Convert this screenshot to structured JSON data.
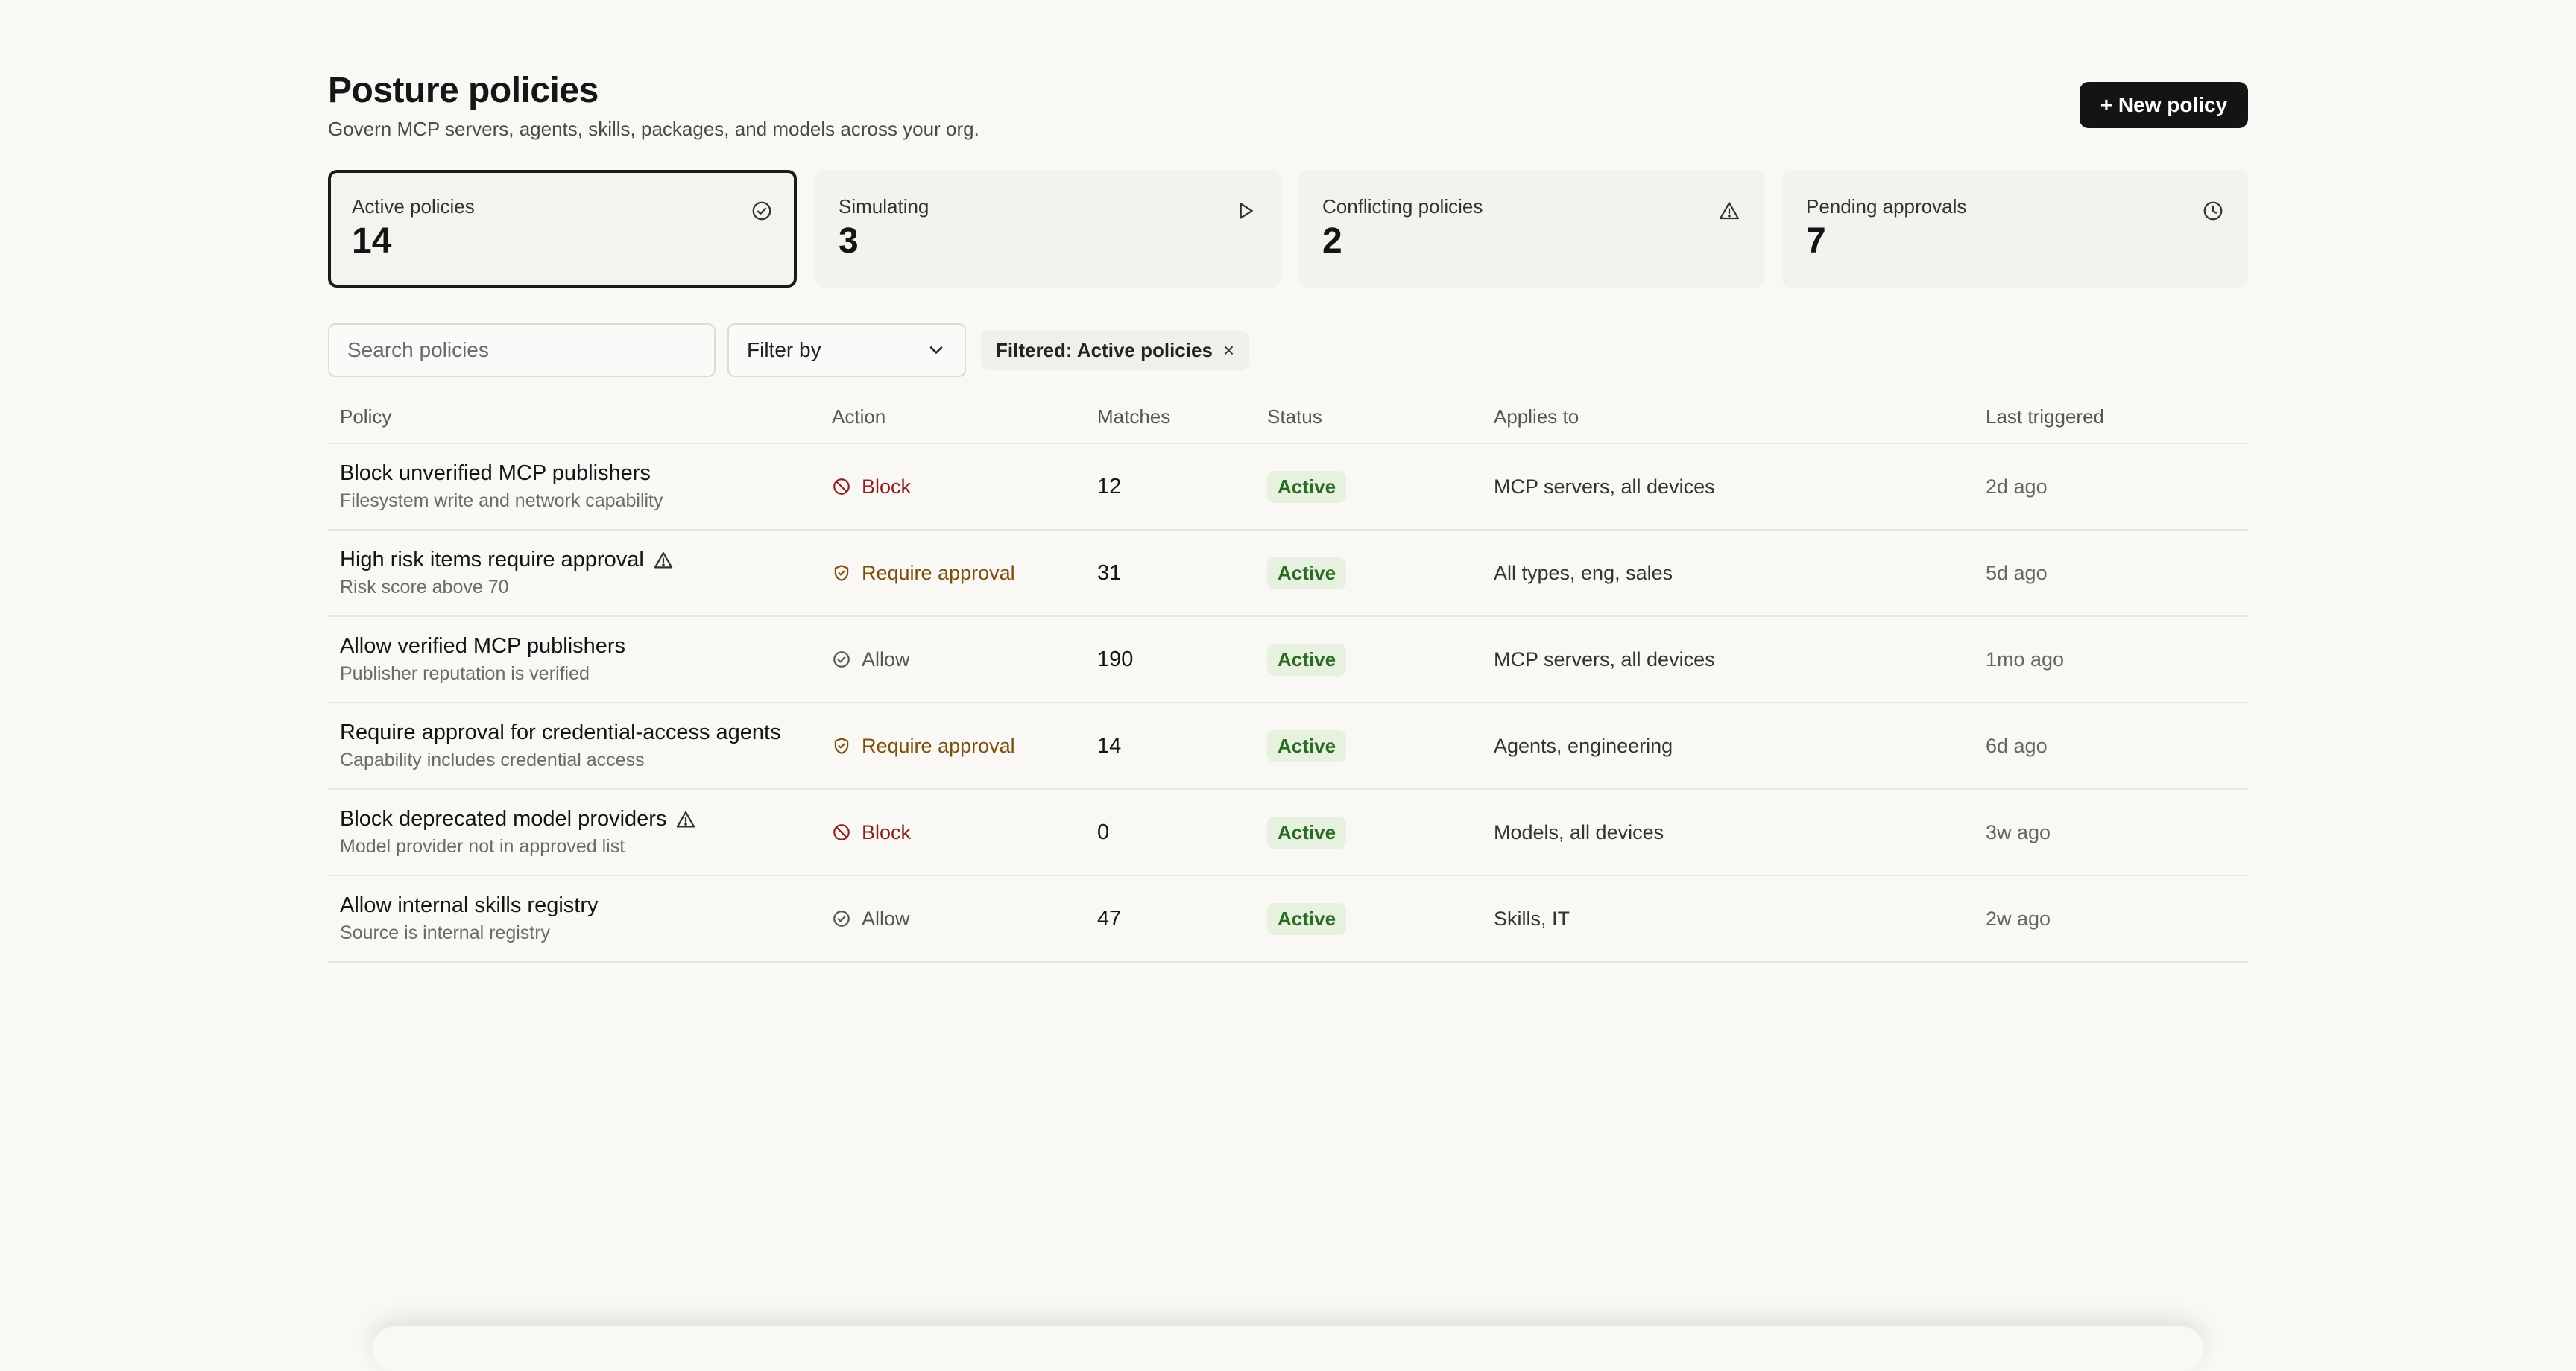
{
  "header": {
    "title": "Posture policies",
    "subtitle": "Govern MCP servers, agents, skills, packages, and models across your org.",
    "new_policy_label": "+ New policy"
  },
  "stats": [
    {
      "label": "Active policies",
      "value": "14",
      "icon": "check-circle-icon",
      "selected": true
    },
    {
      "label": "Simulating",
      "value": "3",
      "icon": "play-icon",
      "selected": false
    },
    {
      "label": "Conflicting policies",
      "value": "2",
      "icon": "warning-triangle-icon",
      "selected": false
    },
    {
      "label": "Pending approvals",
      "value": "7",
      "icon": "clock-icon",
      "selected": false
    }
  ],
  "filters": {
    "search_placeholder": "Search policies",
    "filter_by_label": "Filter by",
    "chip_label": "Filtered: Active policies",
    "chip_close": "×"
  },
  "table": {
    "columns": [
      "Policy",
      "Action",
      "Matches",
      "Status",
      "Applies to",
      "Last triggered"
    ],
    "rows": [
      {
        "name": "Block unverified MCP publishers",
        "desc": "Filesystem write and network capability",
        "warning": false,
        "action": "Block",
        "action_type": "block",
        "matches": "12",
        "status": "Active",
        "applies": "MCP servers, all devices",
        "last": "2d ago"
      },
      {
        "name": "High risk items require approval",
        "desc": "Risk score above 70",
        "warning": true,
        "action": "Require approval",
        "action_type": "approval",
        "matches": "31",
        "status": "Active",
        "applies": "All types, eng, sales",
        "last": "5d ago"
      },
      {
        "name": "Allow verified MCP publishers",
        "desc": "Publisher reputation is verified",
        "warning": false,
        "action": "Allow",
        "action_type": "allow",
        "matches": "190",
        "status": "Active",
        "applies": "MCP servers, all devices",
        "last": "1mo ago"
      },
      {
        "name": "Require approval for credential-access agents",
        "desc": "Capability includes credential access",
        "warning": false,
        "action": "Require approval",
        "action_type": "approval",
        "matches": "14",
        "status": "Active",
        "applies": "Agents, engineering",
        "last": "6d ago"
      },
      {
        "name": "Block deprecated model providers",
        "desc": "Model provider not in approved list",
        "warning": true,
        "action": "Block",
        "action_type": "block",
        "matches": "0",
        "status": "Active",
        "applies": "Models, all devices",
        "last": "3w ago"
      },
      {
        "name": "Allow internal skills registry",
        "desc": "Source is internal registry",
        "warning": false,
        "action": "Allow",
        "action_type": "allow",
        "matches": "47",
        "status": "Active",
        "applies": "Skills, IT",
        "last": "2w ago"
      }
    ]
  },
  "colors": {
    "block": "#8a2222",
    "approval": "#7a4f0c",
    "allow": "#555555",
    "status_bg": "#e6f2df",
    "status_fg": "#2b6a22",
    "primary_button": "#141414"
  }
}
